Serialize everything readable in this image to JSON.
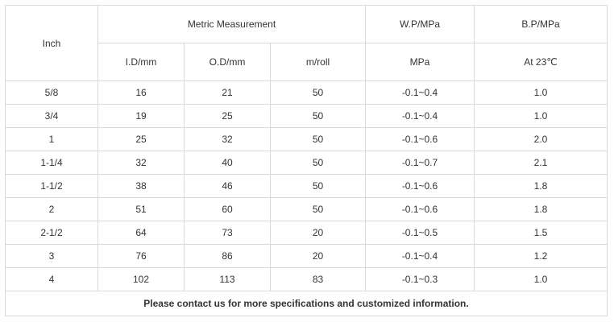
{
  "table": {
    "header": {
      "inch": "Inch",
      "metric_group": "Metric Measurement",
      "wp_top": "W.P/MPa",
      "bp_top": "B.P/MPa",
      "id": "I.D/mm",
      "od": "O.D/mm",
      "roll": "m/roll",
      "wp_unit": "MPa",
      "bp_unit": "At 23℃"
    },
    "rows": [
      [
        "5/8",
        "16",
        "21",
        "50",
        "-0.1~0.4",
        "1.0"
      ],
      [
        "3/4",
        "19",
        "25",
        "50",
        "-0.1~0.4",
        "1.0"
      ],
      [
        "1",
        "25",
        "32",
        "50",
        "-0.1~0.6",
        "2.0"
      ],
      [
        "1-1/4",
        "32",
        "40",
        "50",
        "-0.1~0.7",
        "2.1"
      ],
      [
        "1-1/2",
        "38",
        "46",
        "50",
        "-0.1~0.6",
        "1.8"
      ],
      [
        "2",
        "51",
        "60",
        "50",
        "-0.1~0.6",
        "1.8"
      ],
      [
        "2-1/2",
        "64",
        "73",
        "20",
        "-0.1~0.5",
        "1.5"
      ],
      [
        "3",
        "76",
        "86",
        "20",
        "-0.1~0.4",
        "1.2"
      ],
      [
        "4",
        "102",
        "113",
        "83",
        "-0.1~0.3",
        "1.0"
      ]
    ],
    "footer": "Please contact us for more specifications and customized information."
  }
}
